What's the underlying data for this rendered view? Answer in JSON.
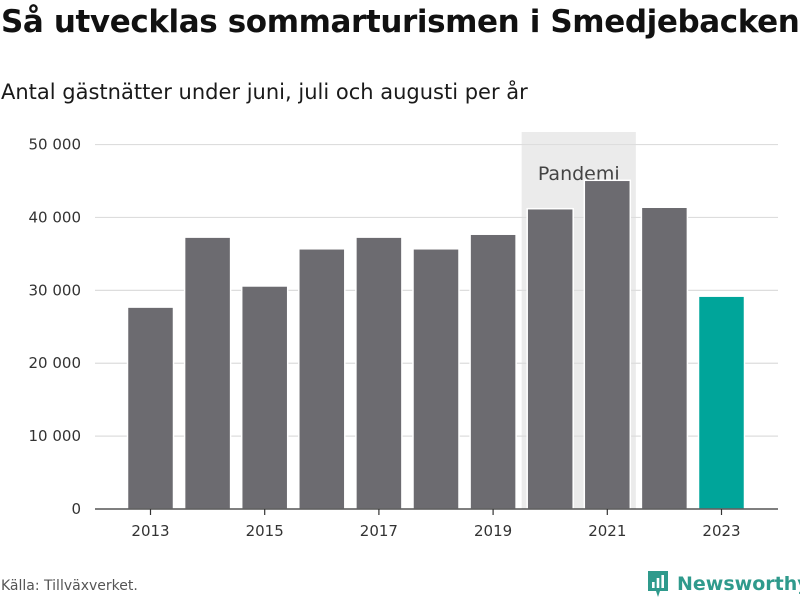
{
  "chart_data": {
    "type": "bar",
    "title": "Så utvecklas sommarturismen i Smedjebacken",
    "subtitle": "Antal gästnätter under juni, juli och augusti per år",
    "categories": [
      "2013",
      "2014",
      "2015",
      "2016",
      "2017",
      "2018",
      "2019",
      "2020",
      "2021",
      "2022",
      "2023"
    ],
    "values": [
      27700,
      37300,
      30600,
      35700,
      37300,
      35700,
      37700,
      41200,
      45100,
      41400,
      29200
    ],
    "highlight_index": 10,
    "x_tick_labels": [
      "2013",
      "2015",
      "2017",
      "2019",
      "2021",
      "2023"
    ],
    "y_ticks": [
      0,
      10000,
      20000,
      30000,
      40000,
      50000
    ],
    "y_tick_labels": [
      "0",
      "10 000",
      "20 000",
      "30 000",
      "40 000",
      "50 000"
    ],
    "ylim": [
      0,
      52000
    ],
    "xlabel": "",
    "ylabel": "",
    "grid": true,
    "annotation_band": {
      "label": "Pandemi",
      "from": "2020",
      "to": "2021"
    }
  },
  "colors": {
    "bar": "#6c6b70",
    "highlight": "#00a59a",
    "band": "#ebebeb",
    "grid": "#dddddd",
    "axis": "#333333"
  },
  "footer": {
    "source": "Källa: Tillväxverket.",
    "brand": "Newsworthy",
    "brand_icon": "bar-chart-logo-icon"
  }
}
